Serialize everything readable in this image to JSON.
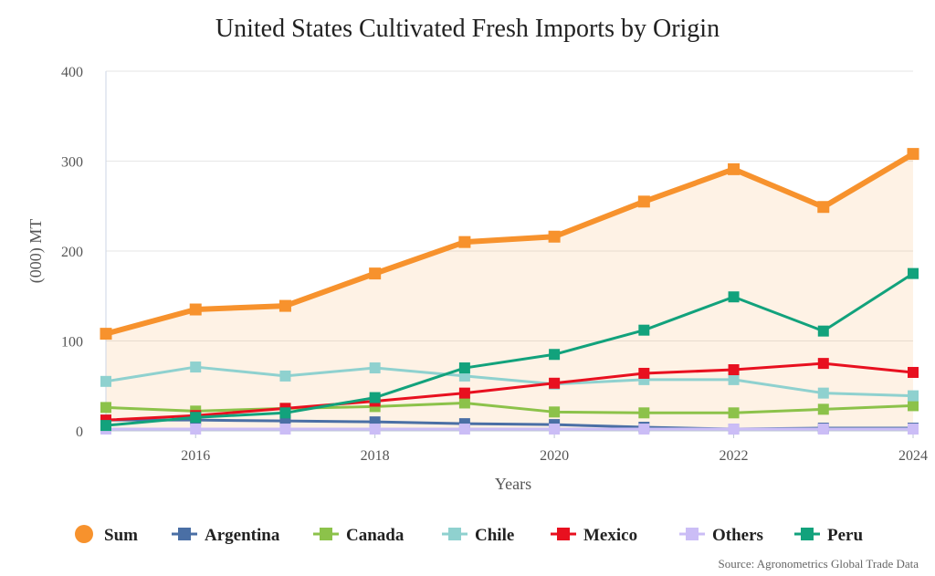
{
  "chart_data": {
    "type": "line",
    "title": "United States Cultivated Fresh Imports by Origin",
    "xlabel": "Years",
    "ylabel": "(000) MT",
    "source": "Source: Agronometrics Global Trade Data",
    "x": [
      2015,
      2016,
      2017,
      2018,
      2019,
      2020,
      2021,
      2022,
      2023,
      2024
    ],
    "xlim": [
      2015,
      2024
    ],
    "xticks": [
      "2016",
      "2018",
      "2020",
      "2022",
      "2024"
    ],
    "ylim": [
      0,
      400
    ],
    "yticks": [
      "0",
      "100",
      "200",
      "300",
      "400"
    ],
    "grid": true,
    "legend_position": "bottom",
    "series": [
      {
        "name": "Sum",
        "color": "#f7922d",
        "filled": true,
        "values": [
          108,
          135,
          139,
          175,
          210,
          216,
          255,
          291,
          249,
          308
        ]
      },
      {
        "name": "Argentina",
        "color": "#4a6fa5",
        "values": [
          12,
          12,
          11,
          10,
          8,
          7,
          4,
          2,
          3,
          3
        ]
      },
      {
        "name": "Canada",
        "color": "#8cc24a",
        "values": [
          26,
          22,
          25,
          27,
          31,
          21,
          20,
          20,
          24,
          28
        ]
      },
      {
        "name": "Chile",
        "color": "#8fd1cf",
        "values": [
          55,
          71,
          61,
          70,
          61,
          52,
          57,
          57,
          42,
          39
        ]
      },
      {
        "name": "Mexico",
        "color": "#e8101f",
        "values": [
          12,
          17,
          25,
          33,
          42,
          53,
          64,
          68,
          75,
          65
        ]
      },
      {
        "name": "Others",
        "color": "#cbbdf6",
        "values": [
          2,
          2,
          2,
          2,
          2,
          2,
          2,
          2,
          2,
          2
        ]
      },
      {
        "name": "Peru",
        "color": "#12a27c",
        "values": [
          6,
          15,
          20,
          37,
          70,
          85,
          112,
          149,
          111,
          175
        ]
      }
    ]
  }
}
